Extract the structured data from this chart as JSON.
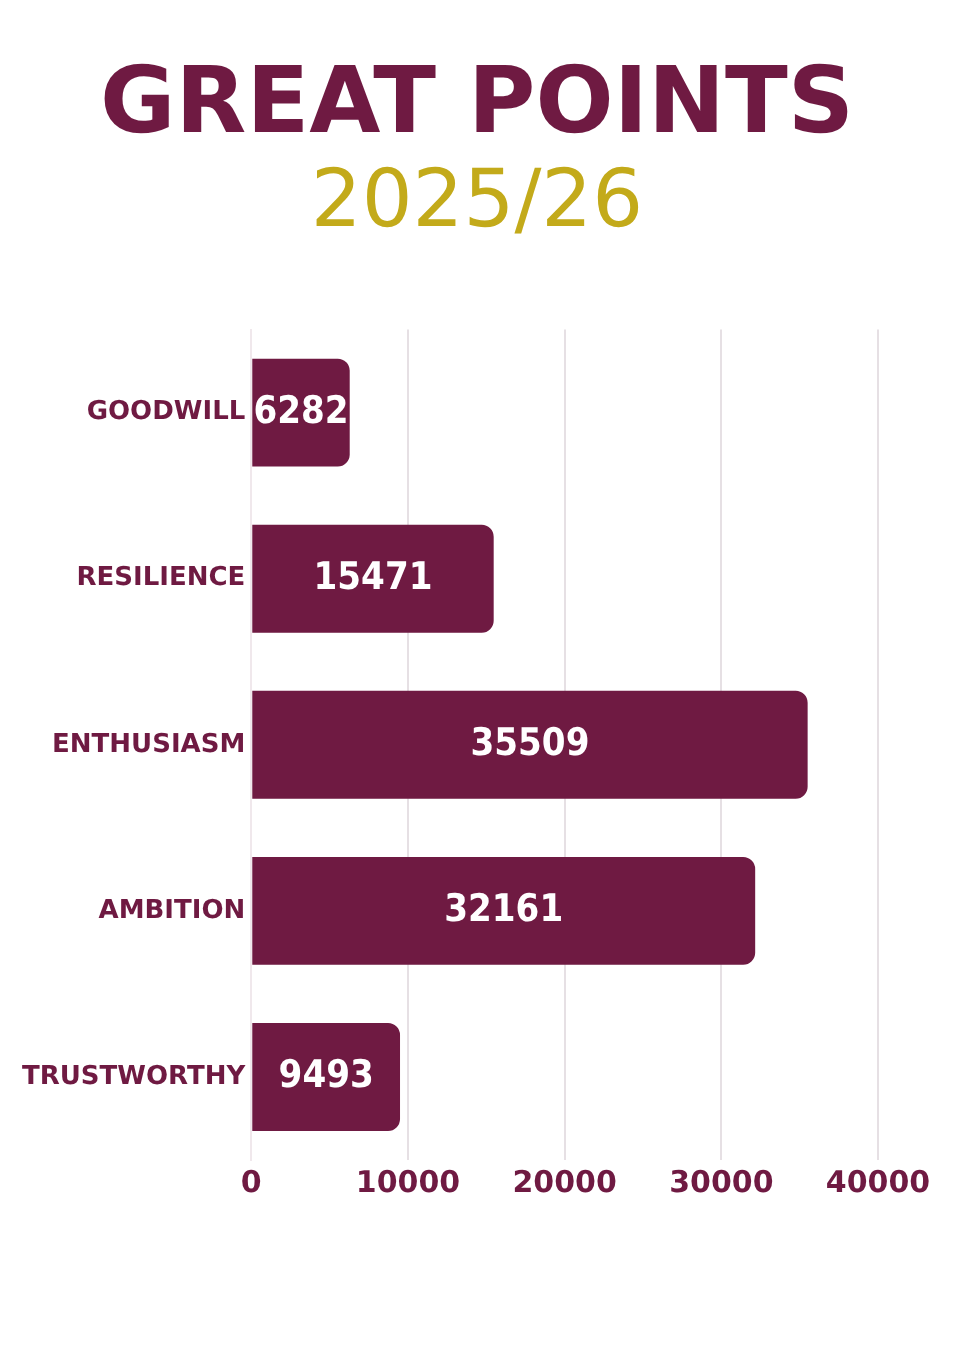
{
  "chart_data": {
    "type": "bar",
    "orientation": "horizontal",
    "title": "GREAT POINTS",
    "subtitle": "2025/26",
    "categories": [
      "GOODWILL",
      "RESILIENCE",
      "ENTHUSIASM",
      "AMBITION",
      "TRUSTWORTHY"
    ],
    "values": [
      6282,
      15471,
      35509,
      32161,
      9493
    ],
    "color": "#6f1a42",
    "xlim": [
      0,
      40000
    ],
    "xticks": [
      0,
      10000,
      20000,
      30000,
      40000
    ],
    "grid": "x",
    "data_labels": true,
    "legend": false
  }
}
